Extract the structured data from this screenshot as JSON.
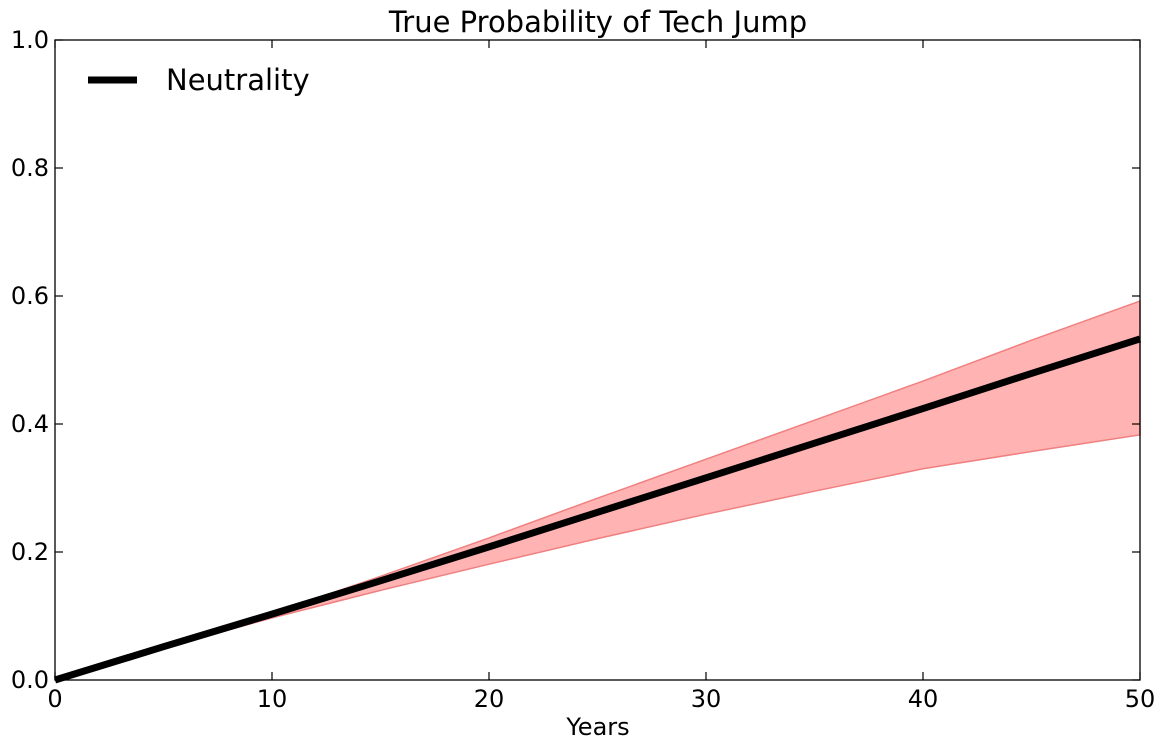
{
  "chart_data": {
    "type": "line",
    "title": "True Probability of Tech Jump",
    "xlabel": "Years",
    "ylabel": "",
    "xlim": [
      0,
      50
    ],
    "ylim": [
      0,
      1.0
    ],
    "x_ticks": [
      "0",
      "10",
      "20",
      "30",
      "40",
      "50"
    ],
    "y_ticks": [
      "0.0",
      "0.2",
      "0.4",
      "0.6",
      "0.8",
      "1.0"
    ],
    "grid": false,
    "legend": {
      "placement": "top-left",
      "entries": [
        "Neutrality"
      ]
    },
    "series": [
      {
        "name": "Neutrality",
        "color": "#000000",
        "x": [
          0,
          5,
          10,
          15,
          20,
          25,
          30,
          35,
          40,
          45,
          50
        ],
        "y": [
          0.0,
          0.052,
          0.103,
          0.155,
          0.208,
          0.262,
          0.316,
          0.37,
          0.424,
          0.479,
          0.533
        ]
      }
    ],
    "band": {
      "color": "#ff9999",
      "edge_color": "#f08080",
      "x": [
        0,
        5,
        10,
        15,
        20,
        25,
        30,
        35,
        40,
        45,
        50
      ],
      "lower": [
        0.0,
        0.05,
        0.097,
        0.14,
        0.181,
        0.221,
        0.259,
        0.295,
        0.33,
        0.357,
        0.383
      ],
      "upper": [
        0.0,
        0.052,
        0.104,
        0.162,
        0.222,
        0.284,
        0.345,
        0.406,
        0.467,
        0.531,
        0.592
      ]
    }
  }
}
